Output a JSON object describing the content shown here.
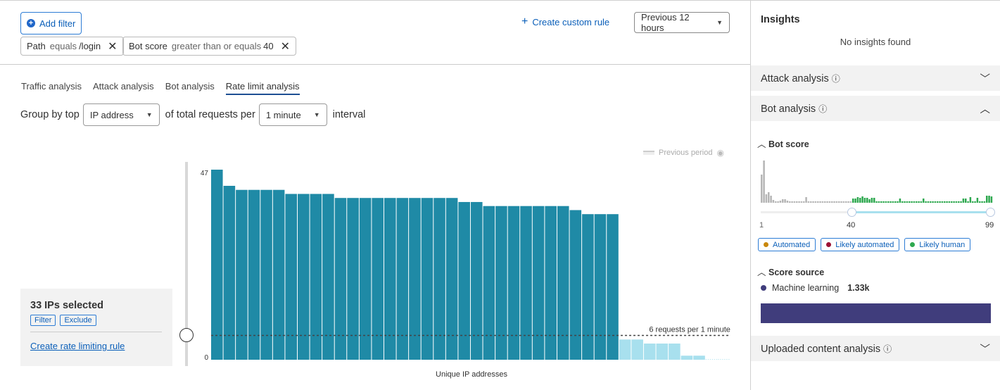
{
  "toolbar": {
    "add_filter": "Add filter",
    "create_rule": "Create custom rule",
    "time_range": "Previous 12 hours"
  },
  "filters": [
    {
      "field": "Path",
      "op": "equals",
      "value": "/login"
    },
    {
      "field": "Bot score",
      "op": "greater than or equals",
      "value": "40"
    }
  ],
  "tabs": [
    "Traffic analysis",
    "Attack analysis",
    "Bot analysis",
    "Rate limit analysis"
  ],
  "active_tab": "Rate limit analysis",
  "group": {
    "prefix": "Group by top",
    "group_by": "IP address",
    "middle": "of total requests per",
    "interval": "1 minute",
    "suffix": "interval"
  },
  "selection": {
    "title": "33 IPs selected",
    "filter": "Filter",
    "exclude": "Exclude",
    "create_rule": "Create rate limiting rule"
  },
  "chart_data": {
    "type": "bar",
    "xlabel": "Unique IP addresses",
    "ylabel": "",
    "y_ticks": [
      "0",
      "47"
    ],
    "ylim": [
      0,
      47
    ],
    "legend": "Previous period",
    "threshold": 6,
    "threshold_label": "6 requests per 1 minute",
    "values": [
      47,
      43,
      42,
      42,
      42,
      42,
      41,
      41,
      41,
      41,
      40,
      40,
      40,
      40,
      40,
      40,
      40,
      40,
      40,
      40,
      39,
      39,
      38,
      38,
      38,
      38,
      38,
      38,
      38,
      37,
      36,
      36,
      36,
      5,
      5,
      4,
      4,
      4,
      1,
      1,
      0,
      0
    ],
    "selected_count": 33,
    "colors": {
      "selected": "#1f8aa6",
      "unselected": "#a8e0ee"
    }
  },
  "insights": {
    "title": "Insights",
    "empty": "No insights found"
  },
  "panels": {
    "attack": "Attack analysis",
    "bot": "Bot analysis",
    "uploaded": "Uploaded content analysis"
  },
  "bot_score": {
    "title": "Bot score",
    "min": "1",
    "threshold": "40",
    "max": "99",
    "histogram": [
      40,
      60,
      12,
      15,
      10,
      4,
      2,
      2,
      3,
      5,
      5,
      3,
      2,
      2,
      2,
      2,
      2,
      2,
      2,
      8,
      2,
      2,
      2,
      2,
      2,
      2,
      2,
      2,
      2,
      2,
      2,
      2,
      2,
      2,
      2,
      2,
      2,
      2,
      2,
      6,
      6,
      8,
      7,
      9,
      7,
      7,
      5,
      7,
      7,
      2,
      2,
      2,
      2,
      2,
      2,
      2,
      2,
      2,
      2,
      6,
      2,
      2,
      2,
      2,
      2,
      2,
      2,
      2,
      2,
      6,
      2,
      2,
      2,
      2,
      2,
      2,
      2,
      2,
      2,
      2,
      2,
      2,
      2,
      2,
      2,
      2,
      6,
      6,
      2,
      8,
      2,
      2,
      7,
      2,
      2,
      2,
      10,
      10,
      9
    ],
    "colors": {
      "below": "#b5b5b5",
      "above": "#2ea84f"
    },
    "legend": [
      {
        "label": "Automated",
        "color": "#c8870c"
      },
      {
        "label": "Likely automated",
        "color": "#9b1134"
      },
      {
        "label": "Likely human",
        "color": "#2ea84f"
      }
    ]
  },
  "score_source": {
    "title": "Score source",
    "label": "Machine learning",
    "value": "1.33k",
    "color": "#403d7c"
  }
}
